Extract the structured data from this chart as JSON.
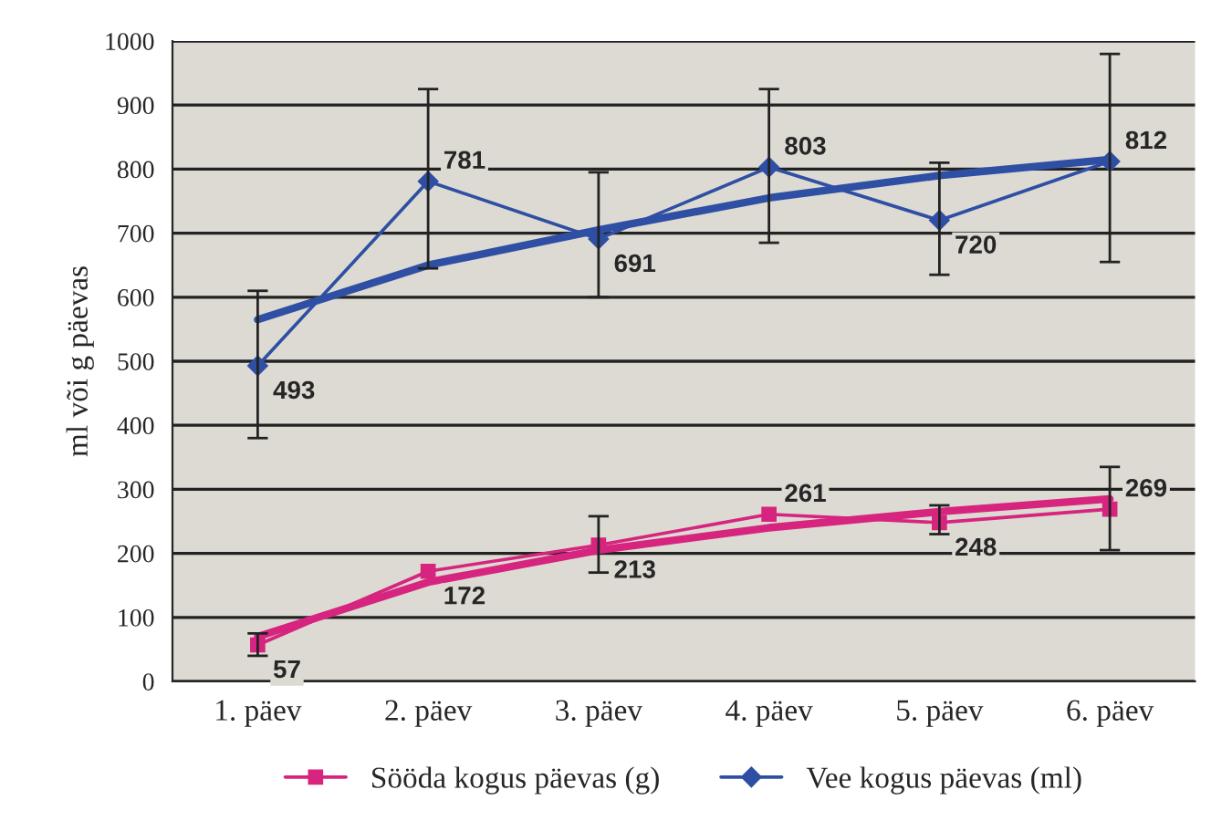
{
  "chart_data": {
    "type": "line",
    "ylabel": "ml või g päevas",
    "categories": [
      "1. päev",
      "2. päev",
      "3. päev",
      "4. päev",
      "5. päev",
      "6. päev"
    ],
    "ylim": [
      0,
      1000
    ],
    "yticks": [
      0,
      100,
      200,
      300,
      400,
      500,
      600,
      700,
      800,
      900,
      1000
    ],
    "grid": "y",
    "legend": "bottom",
    "series": [
      {
        "name": "Sööda kogus päevas (g)",
        "color": "#d6247f",
        "marker": "square",
        "values": [
          57,
          172,
          213,
          261,
          248,
          269
        ],
        "value_labels": [
          "57",
          "172",
          "213",
          "261",
          "248",
          "269"
        ],
        "errors": [
          [
            40,
            75
          ],
          null,
          [
            170,
            258
          ],
          null,
          [
            230,
            275
          ],
          [
            205,
            335
          ]
        ]
      },
      {
        "name": "Vee kogus päevas (ml)",
        "color": "#2e4fa3",
        "marker": "diamond",
        "values": [
          493,
          781,
          691,
          803,
          720,
          812
        ],
        "value_labels": [
          "493",
          "781",
          "691",
          "803",
          "720",
          "812"
        ],
        "errors": [
          [
            380,
            610
          ],
          [
            645,
            925
          ],
          [
            600,
            795
          ],
          [
            685,
            925
          ],
          [
            635,
            810
          ],
          [
            655,
            980
          ]
        ]
      },
      {
        "type": "line",
        "color": "#d6247f",
        "values": [
          70,
          155,
          205,
          240,
          265,
          285
        ]
      },
      {
        "type": "line",
        "color": "#2e4fa3",
        "values": [
          565,
          650,
          705,
          755,
          790,
          815
        ]
      }
    ]
  }
}
